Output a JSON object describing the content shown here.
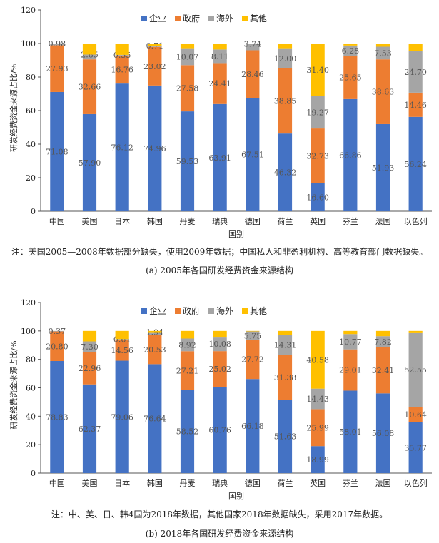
{
  "chart_data": [
    {
      "type": "bar",
      "stacked": true,
      "ylabel": "研发经费资金来源占比/%",
      "xlabel": "国别",
      "ylim": [
        0,
        120
      ],
      "yticks": [
        0,
        20,
        40,
        60,
        80,
        100,
        120
      ],
      "categories": [
        "中国",
        "美国",
        "日本",
        "韩国",
        "丹麦",
        "瑞典",
        "德国",
        "荷兰",
        "英国",
        "芬兰",
        "法国",
        "以色列"
      ],
      "series": [
        {
          "name": "企业",
          "color": "#4472c4",
          "values": [
            71.08,
            57.9,
            76.12,
            74.96,
            59.53,
            63.91,
            67.51,
            46.32,
            16.6,
            66.86,
            51.93,
            56.24
          ]
        },
        {
          "name": "政府",
          "color": "#ed7d31",
          "values": [
            27.93,
            32.66,
            16.76,
            23.02,
            27.58,
            24.41,
            28.46,
            38.85,
            32.73,
            25.65,
            38.63,
            14.46
          ]
        },
        {
          "name": "海外",
          "color": "#a5a5a5",
          "values": [
            0.98,
            2.85,
            0.35,
            0.71,
            10.07,
            8.11,
            3.74,
            12.0,
            19.27,
            6.28,
            7.53,
            24.7
          ]
        },
        {
          "name": "其他",
          "color": "#ffc000",
          "values": [
            0.01,
            6.59,
            6.77,
            1.31,
            2.82,
            3.57,
            0.29,
            2.83,
            31.4,
            1.21,
            1.91,
            4.6
          ]
        }
      ],
      "labeled_series": [
        "企业",
        "政府",
        "海外",
        "其他"
      ],
      "labels": [
        [
          "71.08",
          "57.90",
          "76.12",
          "74.96",
          "59.53",
          "63.91",
          "67.51",
          "46.32",
          "16.60",
          "66.86",
          "51.93",
          "56.24"
        ],
        [
          "27.93",
          "32.66",
          "16.76",
          "23.02",
          "27.58",
          "24.41",
          "28.46",
          "38.85",
          "32.73",
          "25.65",
          "38.63",
          "14.46"
        ],
        [
          "0.98",
          "2.85",
          "0.35",
          "0.71",
          "10.07",
          "8.11",
          "3.74",
          "12.00",
          "19.27",
          "6.28",
          "7.53",
          "24.70"
        ],
        [
          "",
          "",
          "",
          "",
          "",
          "",
          "",
          "",
          "31.40",
          "",
          "",
          ""
        ]
      ],
      "note": "注：美国2005—2008年数据部分缺失，使用2009年数据；中国私人和非盈利机构、高等教育部门数据缺失。",
      "caption": "(a) 2005年各国研发经费资金来源结构"
    },
    {
      "type": "bar",
      "stacked": true,
      "ylabel": "研发经费资金来源占比/%",
      "xlabel": "国别",
      "ylim": [
        0,
        120
      ],
      "yticks": [
        0,
        20,
        40,
        60,
        80,
        100,
        120
      ],
      "categories": [
        "中国",
        "美国",
        "日本",
        "韩国",
        "丹麦",
        "瑞典",
        "德国",
        "荷兰",
        "英国",
        "芬兰",
        "法国",
        "以色列"
      ],
      "series": [
        {
          "name": "企业",
          "color": "#4472c4",
          "values": [
            78.83,
            62.37,
            79.06,
            76.64,
            58.52,
            60.76,
            66.18,
            51.63,
            18.99,
            58.01,
            56.08,
            35.77
          ]
        },
        {
          "name": "政府",
          "color": "#ed7d31",
          "values": [
            20.8,
            22.96,
            14.56,
            20.53,
            27.21,
            25.02,
            27.72,
            31.38,
            25.99,
            29.01,
            32.41,
            10.64
          ]
        },
        {
          "name": "海外",
          "color": "#a5a5a5",
          "values": [
            0.37,
            7.3,
            0.61,
            1.94,
            8.92,
            10.08,
            5.75,
            14.31,
            14.43,
            10.77,
            7.82,
            52.55
          ]
        },
        {
          "name": "其他",
          "color": "#ffc000",
          "values": [
            0.0,
            7.37,
            5.77,
            0.89,
            5.35,
            4.14,
            0.35,
            2.68,
            40.58,
            2.21,
            3.69,
            1.04
          ]
        }
      ],
      "labeled_series": [
        "企业",
        "政府",
        "海外",
        "其他"
      ],
      "labels": [
        [
          "78.83",
          "62.37",
          "79.06",
          "76.64",
          "58.52",
          "60.76",
          "66.18",
          "51.63",
          "18.99",
          "58.01",
          "56.08",
          "35.77"
        ],
        [
          "20.80",
          "22.96",
          "14.56",
          "20.53",
          "27.21",
          "25.02",
          "27.72",
          "31.38",
          "25.99",
          "29.01",
          "32.41",
          "10.64"
        ],
        [
          "0.37",
          "7.30",
          "0.61",
          "1.94",
          "8.92",
          "10.08",
          "5.75",
          "14.31",
          "14.43",
          "10.77",
          "7.82",
          "52.55"
        ],
        [
          "",
          "",
          "",
          "",
          "",
          "",
          "",
          "",
          "40.58",
          "",
          "",
          ""
        ]
      ],
      "note": "注：中、美、日、韩4国为2018年数据，其他国家2018年数据缺失，采用2017年数据。",
      "caption": "(b) 2018年各国研发经费资金来源结构"
    }
  ]
}
